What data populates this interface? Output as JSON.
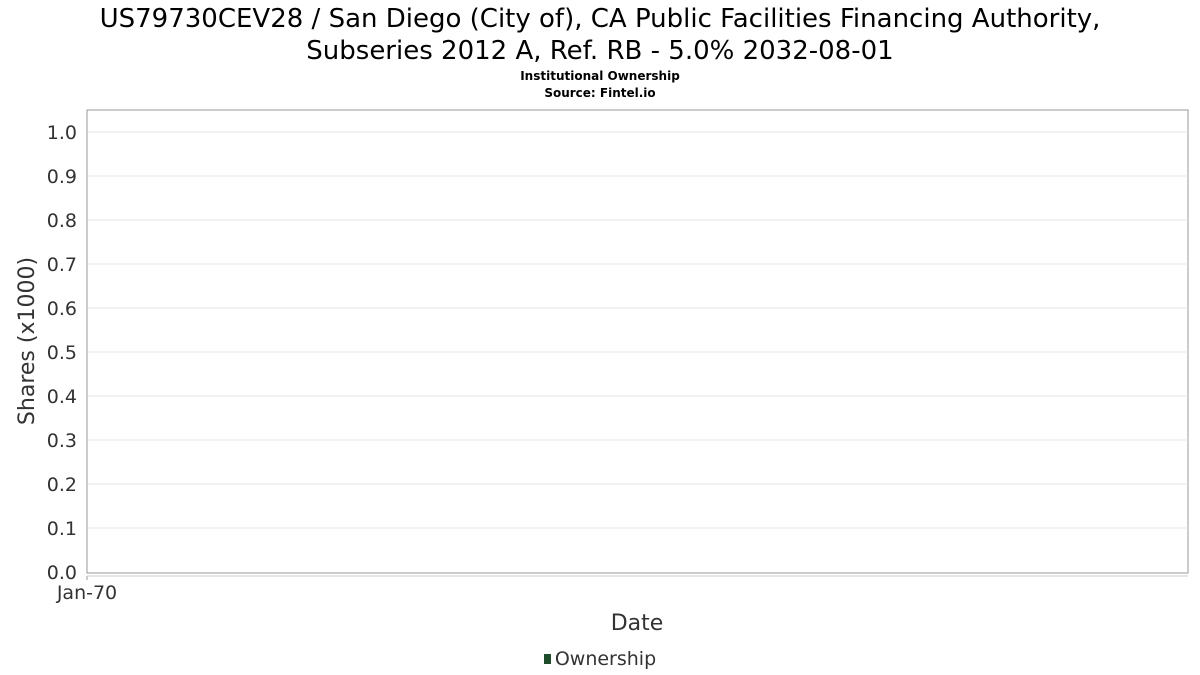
{
  "chart_data": {
    "type": "bar",
    "title_lines": [
      "US79730CEV28 / San Diego (City of), CA Public Facilities Financing Authority,",
      "Subseries 2012 A, Ref. RB - 5.0% 2032-08-01"
    ],
    "subtitle_lines": [
      "Institutional Ownership",
      "Source: Fintel.io"
    ],
    "xlabel": "Date",
    "ylabel": "Shares (x1000)",
    "x_tick_labels": [
      "Jan-70"
    ],
    "y_ticks": [
      0.0,
      0.1,
      0.2,
      0.3,
      0.4,
      0.5,
      0.6,
      0.7,
      0.8,
      0.9,
      1.0
    ],
    "ylim": [
      0.0,
      1.0
    ],
    "grid": true,
    "legend_position": "bottom",
    "series": [
      {
        "name": "Ownership",
        "color": "#1e4d2b",
        "values": []
      }
    ]
  }
}
